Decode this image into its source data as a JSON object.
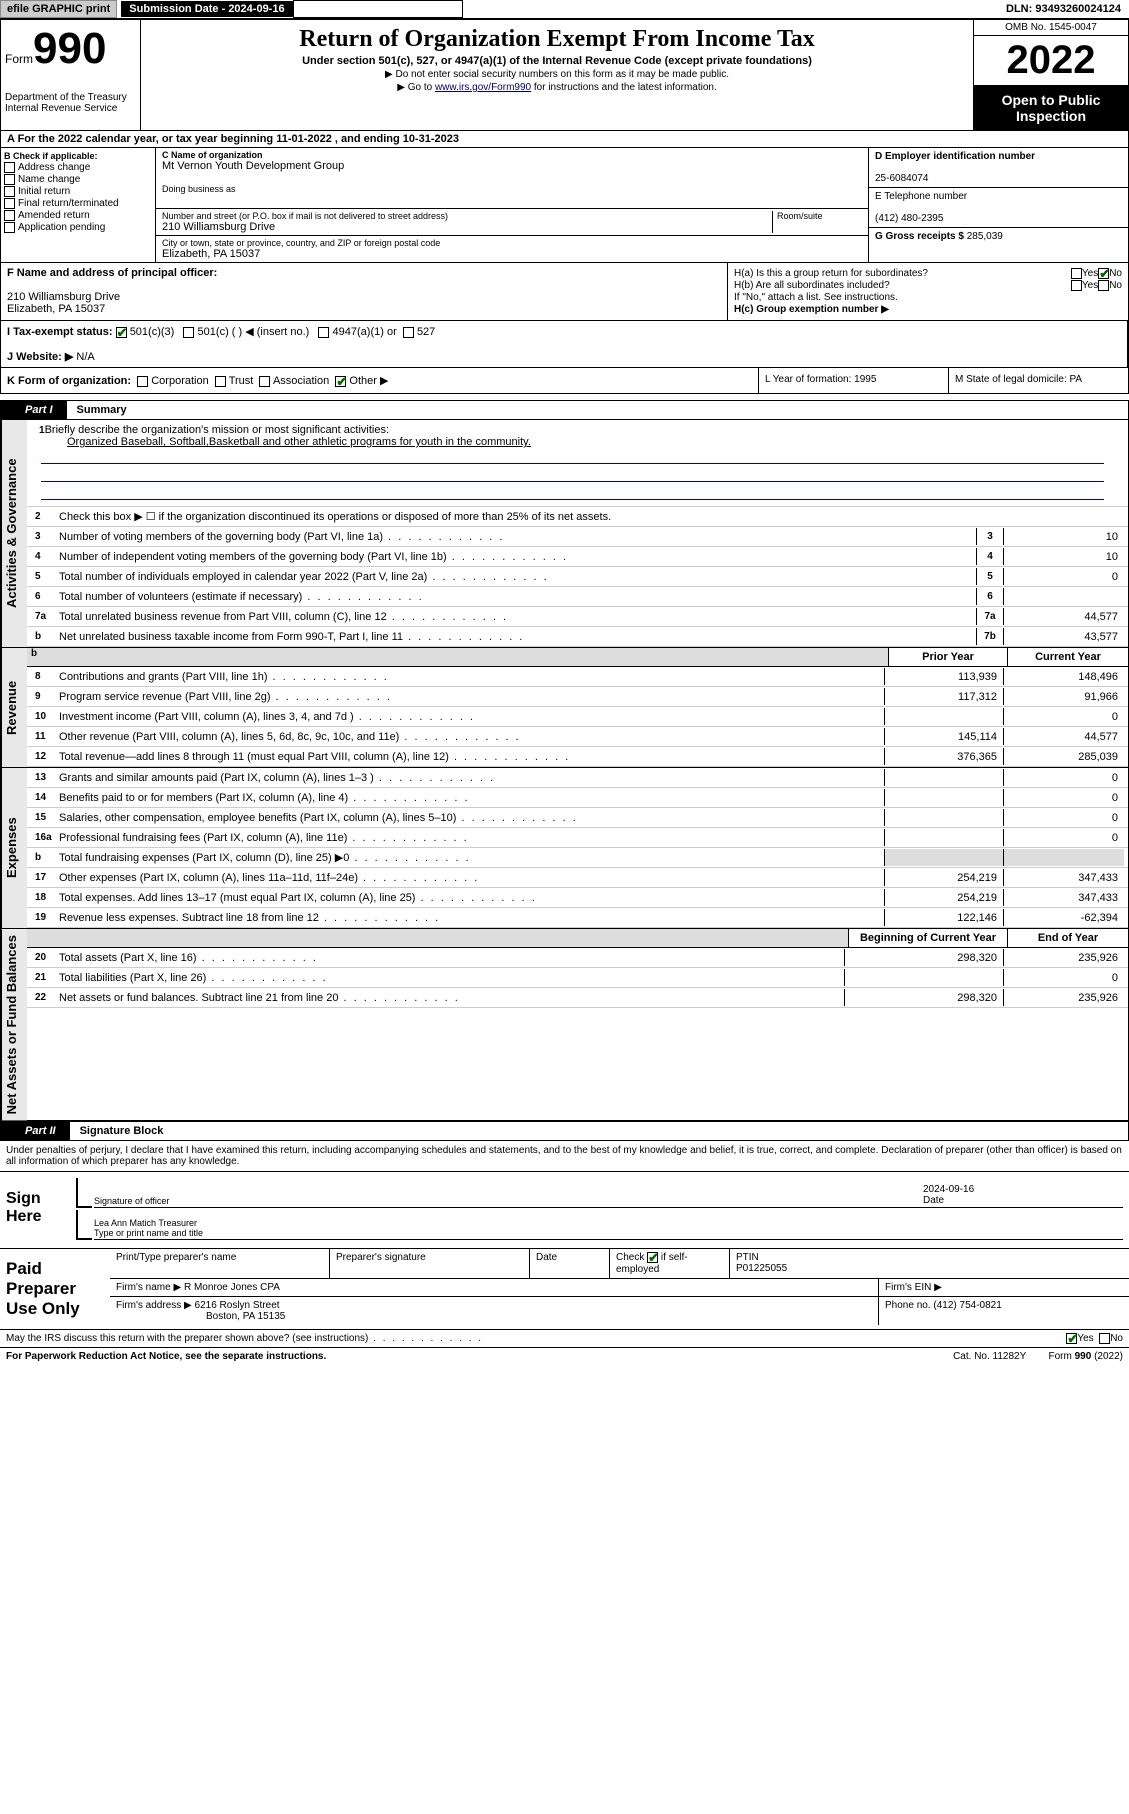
{
  "topbar": {
    "efile": "efile GRAPHIC print",
    "sub_date_label": "Submission Date - 2024-09-16",
    "dln": "DLN: 93493260024124"
  },
  "header": {
    "form_word": "Form",
    "form_num": "990",
    "dept": "Department of the Treasury\nInternal Revenue Service",
    "title": "Return of Organization Exempt From Income Tax",
    "subtitle": "Under section 501(c), 527, or 4947(a)(1) of the Internal Revenue Code (except private foundations)",
    "note1": "▶ Do not enter social security numbers on this form as it may be made public.",
    "note2_pre": "▶ Go to ",
    "note2_link": "www.irs.gov/Form990",
    "note2_post": " for instructions and the latest information.",
    "omb": "OMB No. 1545-0047",
    "year": "2022",
    "open": "Open to Public Inspection"
  },
  "row_a": "A For the 2022 calendar year, or tax year beginning 11-01-2022    , and ending 10-31-2023",
  "col_b": {
    "label": "B Check if applicable:",
    "items": [
      "Address change",
      "Name change",
      "Initial return",
      "Final return/terminated",
      "Amended return",
      "Application pending"
    ]
  },
  "col_c": {
    "name_label": "C Name of organization",
    "name": "Mt Vernon Youth Development Group",
    "dba_label": "Doing business as",
    "addr_label": "Number and street (or P.O. box if mail is not delivered to street address)",
    "room_label": "Room/suite",
    "addr": "210 Williamsburg Drive",
    "city_label": "City or town, state or province, country, and ZIP or foreign postal code",
    "city": "Elizabeth, PA  15037"
  },
  "col_d": {
    "ein_label": "D Employer identification number",
    "ein": "25-6084074",
    "tel_label": "E Telephone number",
    "tel": "(412) 480-2395",
    "gross_label": "G Gross receipts $",
    "gross": "285,039"
  },
  "block_f": {
    "label": "F  Name and address of principal officer:",
    "addr1": "210 Williamsburg Drive",
    "addr2": "Elizabeth, PA  15037"
  },
  "block_h": {
    "ha": "H(a)  Is this a group return for subordinates?",
    "hb": "H(b)  Are all subordinates included?",
    "hb_note": "If \"No,\" attach a list. See instructions.",
    "hc": "H(c)  Group exemption number ▶"
  },
  "row_i": {
    "label": "I    Tax-exempt status:",
    "opts": [
      "501(c)(3)",
      "501(c) (  ) ◀ (insert no.)",
      "4947(a)(1) or",
      "527"
    ]
  },
  "row_j": {
    "label": "J   Website: ▶",
    "val": "N/A"
  },
  "row_k": {
    "label": "K Form of organization:",
    "opts": [
      "Corporation",
      "Trust",
      "Association",
      "Other ▶"
    ]
  },
  "col_l": "L Year of formation: 1995",
  "col_m": "M State of legal domicile: PA",
  "part1": {
    "tab": "Part I",
    "title": "Summary"
  },
  "summary": {
    "l1_label": "Briefly describe the organization's mission or most significant activities:",
    "l1_text": "Organized Baseball, Softball,Basketball and other athletic programs for youth in the community.",
    "l2": "Check this box ▶ ☐  if the organization discontinued its operations or disposed of more than 25% of its net assets.",
    "lines_ag": [
      {
        "n": "3",
        "t": "Number of voting members of the governing body (Part VI, line 1a)",
        "box": "3",
        "v": "10"
      },
      {
        "n": "4",
        "t": "Number of independent voting members of the governing body (Part VI, line 1b)",
        "box": "4",
        "v": "10"
      },
      {
        "n": "5",
        "t": "Total number of individuals employed in calendar year 2022 (Part V, line 2a)",
        "box": "5",
        "v": "0"
      },
      {
        "n": "6",
        "t": "Total number of volunteers (estimate if necessary)",
        "box": "6",
        "v": ""
      },
      {
        "n": "7a",
        "t": "Total unrelated business revenue from Part VIII, column (C), line 12",
        "box": "7a",
        "v": "44,577"
      },
      {
        "n": "b",
        "t": "Net unrelated business taxable income from Form 990-T, Part I, line 11",
        "box": "7b",
        "v": "43,577"
      }
    ],
    "col_hdr_prior": "Prior Year",
    "col_hdr_curr": "Current Year",
    "rev": [
      {
        "n": "8",
        "t": "Contributions and grants (Part VIII, line 1h)",
        "p": "113,939",
        "c": "148,496"
      },
      {
        "n": "9",
        "t": "Program service revenue (Part VIII, line 2g)",
        "p": "117,312",
        "c": "91,966"
      },
      {
        "n": "10",
        "t": "Investment income (Part VIII, column (A), lines 3, 4, and 7d )",
        "p": "",
        "c": "0"
      },
      {
        "n": "11",
        "t": "Other revenue (Part VIII, column (A), lines 5, 6d, 8c, 9c, 10c, and 11e)",
        "p": "145,114",
        "c": "44,577"
      },
      {
        "n": "12",
        "t": "Total revenue—add lines 8 through 11 (must equal Part VIII, column (A), line 12)",
        "p": "376,365",
        "c": "285,039"
      }
    ],
    "exp": [
      {
        "n": "13",
        "t": "Grants and similar amounts paid (Part IX, column (A), lines 1–3 )",
        "p": "",
        "c": "0"
      },
      {
        "n": "14",
        "t": "Benefits paid to or for members (Part IX, column (A), line 4)",
        "p": "",
        "c": "0"
      },
      {
        "n": "15",
        "t": "Salaries, other compensation, employee benefits (Part IX, column (A), lines 5–10)",
        "p": "",
        "c": "0"
      },
      {
        "n": "16a",
        "t": "Professional fundraising fees (Part IX, column (A), line 11e)",
        "p": "",
        "c": "0"
      },
      {
        "n": "b",
        "t": "Total fundraising expenses (Part IX, column (D), line 25) ▶0",
        "p": "shade",
        "c": "shade"
      },
      {
        "n": "17",
        "t": "Other expenses (Part IX, column (A), lines 11a–11d, 11f–24e)",
        "p": "254,219",
        "c": "347,433"
      },
      {
        "n": "18",
        "t": "Total expenses. Add lines 13–17 (must equal Part IX, column (A), line 25)",
        "p": "254,219",
        "c": "347,433"
      },
      {
        "n": "19",
        "t": "Revenue less expenses. Subtract line 18 from line 12",
        "p": "122,146",
        "c": "-62,394"
      }
    ],
    "na_hdr_prior": "Beginning of Current Year",
    "na_hdr_curr": "End of Year",
    "na": [
      {
        "n": "20",
        "t": "Total assets (Part X, line 16)",
        "p": "298,320",
        "c": "235,926"
      },
      {
        "n": "21",
        "t": "Total liabilities (Part X, line 26)",
        "p": "",
        "c": "0"
      },
      {
        "n": "22",
        "t": "Net assets or fund balances. Subtract line 21 from line 20",
        "p": "298,320",
        "c": "235,926"
      }
    ]
  },
  "sidebars": {
    "ag": "Activities & Governance",
    "rev": "Revenue",
    "exp": "Expenses",
    "na": "Net Assets or Fund Balances"
  },
  "part2": {
    "tab": "Part II",
    "title": "Signature Block"
  },
  "penalty": "Under penalties of perjury, I declare that I have examined this return, including accompanying schedules and statements, and to the best of my knowledge and belief, it is true, correct, and complete. Declaration of preparer (other than officer) is based on all information of which preparer has any knowledge.",
  "sign": {
    "left": "Sign Here",
    "sig_label": "Signature of officer",
    "date": "2024-09-16",
    "date_label": "Date",
    "name": "Lea Ann Matich  Treasurer",
    "name_label": "Type or print name and title"
  },
  "prep": {
    "left": "Paid Preparer Use Only",
    "h1": "Print/Type preparer's name",
    "h2": "Preparer's signature",
    "h3": "Date",
    "h4_pre": "Check",
    "h4_post": "if self-employed",
    "h5": "PTIN",
    "ptin": "P01225055",
    "firm_label": "Firm's name    ▶",
    "firm": "R Monroe Jones CPA",
    "ein_label": "Firm's EIN ▶",
    "addr_label": "Firm's address ▶",
    "addr1": "6216 Roslyn Street",
    "addr2": "Boston, PA  15135",
    "phone_label": "Phone no.",
    "phone": "(412) 754-0821"
  },
  "footer": {
    "discuss": "May the IRS discuss this return with the preparer shown above? (see instructions)",
    "paperwork": "For Paperwork Reduction Act Notice, see the separate instructions.",
    "cat": "Cat. No. 11282Y",
    "form": "Form 990 (2022)"
  }
}
